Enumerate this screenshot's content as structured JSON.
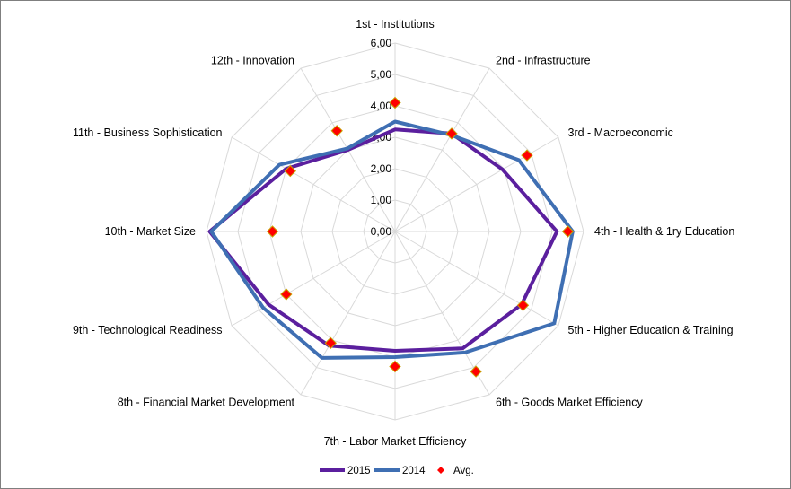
{
  "chart_data": {
    "type": "radar",
    "axes": [
      "1st - Institutions",
      "2nd - Infrastructure",
      "3rd - Macroeconomic",
      "4th - Health & 1ry Education",
      "5th - Higher Education & Training",
      "6th - Goods Market Efficiency",
      "7th - Labor Market Efficiency",
      "8th - Financial Market Development",
      "9th - Technological Readiness",
      "10th - Market Size",
      "11th - Business Sophistication",
      "12th - Innovation"
    ],
    "rlim": [
      0,
      6
    ],
    "ticks": [
      "0,00",
      "1,00",
      "2,00",
      "3,00",
      "4,00",
      "5,00",
      "6,00"
    ],
    "grid": true,
    "legend_position": "bottom",
    "series": [
      {
        "name": "2015",
        "style": "line",
        "color": "#5b1f9e",
        "values": [
          3.25,
          3.6,
          3.95,
          5.15,
          4.65,
          4.3,
          3.8,
          4.2,
          4.65,
          5.9,
          4.0,
          3.0
        ]
      },
      {
        "name": "2014",
        "style": "line",
        "color": "#3f6fb3",
        "values": [
          3.5,
          3.55,
          4.55,
          5.65,
          5.85,
          4.45,
          4.0,
          4.65,
          4.85,
          5.85,
          4.25,
          3.05
        ]
      },
      {
        "name": "Avg.",
        "style": "marker",
        "color": "#ff0000",
        "values": [
          4.1,
          3.6,
          4.85,
          5.5,
          4.7,
          5.15,
          4.3,
          4.1,
          4.0,
          3.9,
          3.85,
          3.7
        ]
      }
    ]
  }
}
